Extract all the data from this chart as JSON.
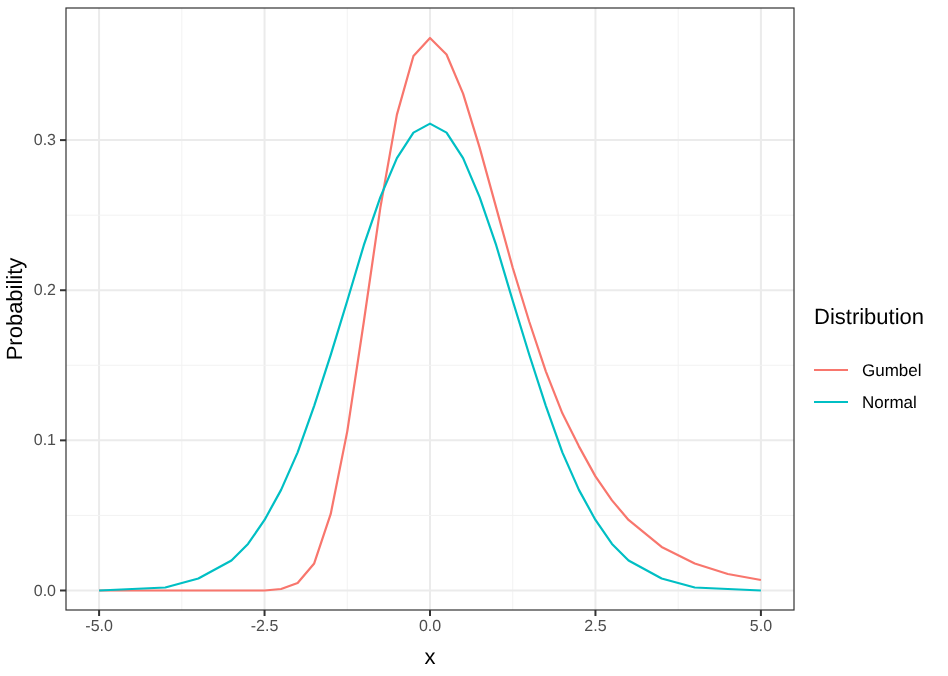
{
  "chart_data": {
    "type": "line",
    "xlabel": "x",
    "ylabel": "Probability",
    "legend_title": "Distribution",
    "legend": "right",
    "grid": true,
    "line_style": "solid",
    "marker": "none",
    "xlim": [
      -5.5,
      5.5
    ],
    "xticks": [
      {
        "value": -5,
        "label": "-5.0"
      },
      {
        "value": -2.5,
        "label": "-2.5"
      },
      {
        "value": 0,
        "label": "0.0"
      },
      {
        "value": 2.5,
        "label": "2.5"
      },
      {
        "value": 5,
        "label": "5.0"
      }
    ],
    "ylim": [
      -0.013,
      0.388
    ],
    "yticks": [
      {
        "value": 0,
        "label": "0.0"
      },
      0.1,
      0.2,
      0.3
    ],
    "x": [
      -5,
      -4.5,
      -4,
      -3.5,
      -3,
      -2.75,
      -2.5,
      -2.25,
      -2,
      -1.75,
      -1.5,
      -1.25,
      -1,
      -0.75,
      -0.5,
      -0.25,
      0,
      0.25,
      0.5,
      0.75,
      1,
      1.25,
      1.5,
      1.75,
      2,
      2.25,
      2.5,
      2.75,
      3,
      3.5,
      4,
      4.5,
      5
    ],
    "series": [
      {
        "name": "Gumbel",
        "color": "#f8766d",
        "values": [
          0,
          0,
          0,
          0,
          0,
          0,
          0,
          0.001,
          0.005,
          0.018,
          0.051,
          0.106,
          0.179,
          0.255,
          0.317,
          0.356,
          0.368,
          0.357,
          0.331,
          0.295,
          0.255,
          0.215,
          0.179,
          0.146,
          0.118,
          0.096,
          0.076,
          0.06,
          0.047,
          0.029,
          0.018,
          0.011,
          0.007
        ]
      },
      {
        "name": "Normal",
        "color": "#00bfc4",
        "values": [
          0,
          0.001,
          0.002,
          0.008,
          0.02,
          0.031,
          0.047,
          0.067,
          0.092,
          0.123,
          0.157,
          0.193,
          0.23,
          0.262,
          0.288,
          0.305,
          0.311,
          0.305,
          0.288,
          0.262,
          0.23,
          0.193,
          0.157,
          0.123,
          0.092,
          0.067,
          0.047,
          0.031,
          0.02,
          0.008,
          0.002,
          0.001,
          0
        ]
      }
    ]
  }
}
